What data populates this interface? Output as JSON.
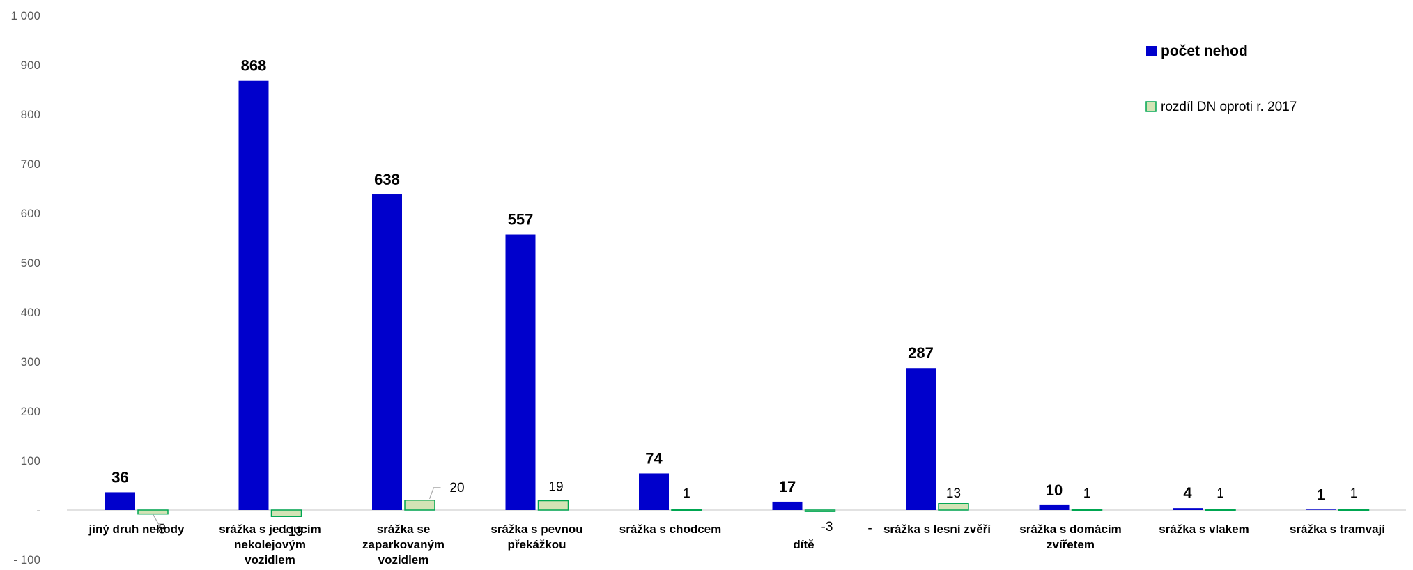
{
  "chart_data": {
    "type": "bar",
    "categories": [
      "jiný druh nehody",
      "srážka s jedoucím nekolejovým vozidlem",
      "srážka se zaparkovaným vozidlem",
      "srážka s pevnou překážkou",
      "srážka s chodcem",
      "dítě",
      "srážka s lesní zvěří",
      "srážka s domácím zvířetem",
      "srážka s vlakem",
      "srážka s tramvají"
    ],
    "series": [
      {
        "name": "počet nehod",
        "values": [
          36,
          868,
          638,
          557,
          74,
          17,
          287,
          10,
          4,
          1
        ],
        "labels": [
          "36",
          "868",
          "638",
          "557",
          "74",
          "17",
          "287",
          "10",
          "4",
          "1"
        ],
        "color": "#0000CC"
      },
      {
        "name": "rozdíl DN oproti r. 2017",
        "values": [
          -8,
          -13,
          20,
          19,
          1,
          -3,
          13,
          1,
          1,
          1
        ],
        "labels": [
          "-8",
          "-13",
          "20",
          "19",
          "1",
          "-3",
          "13",
          "1",
          "1",
          "1"
        ],
        "color": "#D3E3B5",
        "border": "#00A651"
      }
    ],
    "extra_text": "-",
    "ylim": [
      -100,
      1000
    ],
    "yticks": [
      -100,
      0,
      100,
      200,
      300,
      400,
      500,
      600,
      700,
      800,
      900,
      1000
    ],
    "ytick_labels": [
      "- 100",
      "-",
      "100",
      "200",
      "300",
      "400",
      "500",
      "600",
      "700",
      "800",
      "900",
      "1 000"
    ],
    "grid": false,
    "legend_position": "top-right"
  }
}
